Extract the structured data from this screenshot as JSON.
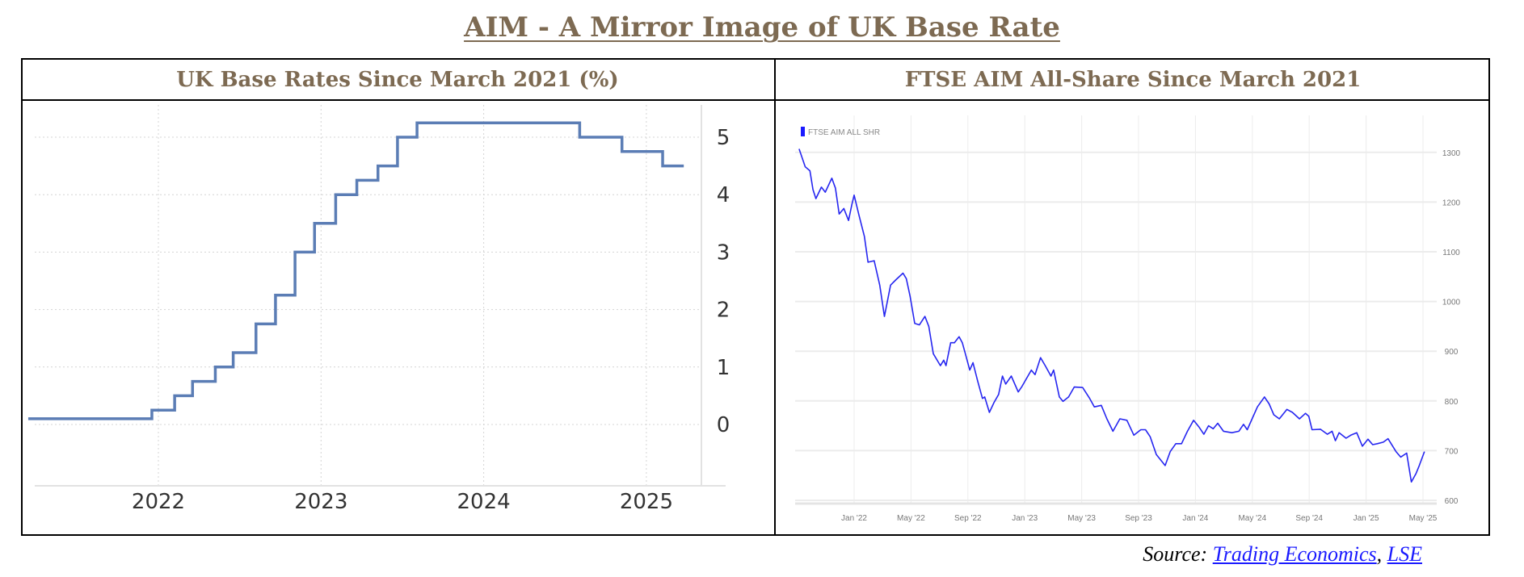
{
  "title": "AIM  - A Mirror Image of UK Base Rate",
  "source": {
    "prefix": "Source: ",
    "link1": "Trading Economics",
    "sep": ", ",
    "link2": "LSE"
  },
  "chart_data": [
    {
      "type": "line",
      "title": "UK Base Rates Since March 2021 (%)",
      "xlabel": "",
      "ylabel": "",
      "x_unit": "decimal year",
      "xlim": [
        2021.2,
        2025.55
      ],
      "ylim": [
        -1.1,
        5.6
      ],
      "yticks": [
        0,
        1,
        2,
        3,
        4,
        5
      ],
      "xticks": [
        {
          "v": 2022,
          "label": "2022"
        },
        {
          "v": 2023,
          "label": "2023"
        },
        {
          "v": 2024,
          "label": "2024"
        },
        {
          "v": 2025,
          "label": "2025"
        }
      ],
      "grid": true,
      "color": "#5b7db5",
      "step_points": [
        [
          2021.2,
          0.1
        ],
        [
          2021.96,
          0.25
        ],
        [
          2022.1,
          0.5
        ],
        [
          2022.21,
          0.75
        ],
        [
          2022.35,
          1.0
        ],
        [
          2022.46,
          1.25
        ],
        [
          2022.6,
          1.75
        ],
        [
          2022.72,
          2.25
        ],
        [
          2022.84,
          3.0
        ],
        [
          2022.96,
          3.5
        ],
        [
          2023.09,
          4.0
        ],
        [
          2023.22,
          4.25
        ],
        [
          2023.35,
          4.5
        ],
        [
          2023.47,
          5.0
        ],
        [
          2023.59,
          5.25
        ],
        [
          2024.59,
          5.0
        ],
        [
          2024.85,
          4.75
        ],
        [
          2025.1,
          4.5
        ],
        [
          2025.23,
          4.5
        ]
      ]
    },
    {
      "type": "line",
      "title": "FTSE AIM All-Share Since March 2021",
      "legend": "FTSE AIM ALL SHR",
      "legend_position": "top-left",
      "x_unit": "months since Jan 2022",
      "xlim": [
        -3.9,
        40.1
      ],
      "ylim": [
        600,
        1340
      ],
      "yticks": [
        600,
        700,
        800,
        900,
        1000,
        1100,
        1200,
        1300
      ],
      "xticks": [
        {
          "v": 0,
          "label": "Jan '22"
        },
        {
          "v": 4,
          "label": "May '22"
        },
        {
          "v": 8,
          "label": "Sep '22"
        },
        {
          "v": 12,
          "label": "Jan '23"
        },
        {
          "v": 16,
          "label": "May '23"
        },
        {
          "v": 20,
          "label": "Sep '23"
        },
        {
          "v": 24,
          "label": "Jan '24"
        },
        {
          "v": 28,
          "label": "May '24"
        },
        {
          "v": 32,
          "label": "Sep '24"
        },
        {
          "v": 36,
          "label": "Jan '25"
        },
        {
          "v": 40,
          "label": "May '25"
        }
      ],
      "grid": true,
      "color": "#2626f0",
      "points": [
        [
          -3.87,
          1307
        ],
        [
          -3.44,
          1271
        ],
        [
          -3.11,
          1263
        ],
        [
          -2.89,
          1225
        ],
        [
          -2.69,
          1207
        ],
        [
          -2.3,
          1230
        ],
        [
          -2.03,
          1220
        ],
        [
          -1.57,
          1248
        ],
        [
          -1.31,
          1228
        ],
        [
          -1.05,
          1176
        ],
        [
          -0.72,
          1187
        ],
        [
          -0.39,
          1163
        ],
        [
          -0.16,
          1195
        ],
        [
          0,
          1214
        ],
        [
          0.33,
          1175
        ],
        [
          0.72,
          1131
        ],
        [
          0.98,
          1079
        ],
        [
          1.41,
          1082
        ],
        [
          1.8,
          1033
        ],
        [
          2.13,
          970
        ],
        [
          2.56,
          1033
        ],
        [
          2.95,
          1044
        ],
        [
          3.44,
          1057
        ],
        [
          3.67,
          1046
        ],
        [
          3.93,
          1011
        ],
        [
          4.26,
          956
        ],
        [
          4.59,
          953
        ],
        [
          4.98,
          970
        ],
        [
          5.25,
          950
        ],
        [
          5.57,
          895
        ],
        [
          6.07,
          871
        ],
        [
          6.3,
          882
        ],
        [
          6.46,
          871
        ],
        [
          6.79,
          917
        ],
        [
          7.05,
          917
        ],
        [
          7.38,
          929
        ],
        [
          7.61,
          917
        ],
        [
          7.87,
          890
        ],
        [
          8.13,
          862
        ],
        [
          8.36,
          877
        ],
        [
          8.69,
          840
        ],
        [
          9.02,
          805
        ],
        [
          9.18,
          808
        ],
        [
          9.51,
          777
        ],
        [
          9.84,
          797
        ],
        [
          10.16,
          813
        ],
        [
          10.43,
          850
        ],
        [
          10.66,
          834
        ],
        [
          11.05,
          850
        ],
        [
          11.54,
          818
        ],
        [
          11.8,
          829
        ],
        [
          12.46,
          862
        ],
        [
          12.72,
          853
        ],
        [
          13.11,
          887
        ],
        [
          13.44,
          871
        ],
        [
          13.84,
          850
        ],
        [
          14.03,
          862
        ],
        [
          14.43,
          808
        ],
        [
          14.69,
          799
        ],
        [
          15.08,
          808
        ],
        [
          15.48,
          828
        ],
        [
          16.07,
          827
        ],
        [
          16.56,
          805
        ],
        [
          16.89,
          788
        ],
        [
          17.38,
          791
        ],
        [
          17.77,
          764
        ],
        [
          18.2,
          739
        ],
        [
          18.69,
          764
        ],
        [
          19.18,
          761
        ],
        [
          19.67,
          731
        ],
        [
          20.16,
          742
        ],
        [
          20.49,
          742
        ],
        [
          20.82,
          728
        ],
        [
          21.25,
          692
        ],
        [
          21.87,
          670
        ],
        [
          22.23,
          698
        ],
        [
          22.62,
          714
        ],
        [
          23.02,
          714
        ],
        [
          23.44,
          739
        ],
        [
          23.87,
          761
        ],
        [
          24.26,
          747
        ],
        [
          24.59,
          733
        ],
        [
          24.92,
          750
        ],
        [
          25.25,
          744
        ],
        [
          25.57,
          755
        ],
        [
          25.97,
          739
        ],
        [
          26.56,
          736
        ],
        [
          27.05,
          739
        ],
        [
          27.38,
          753
        ],
        [
          27.64,
          742
        ],
        [
          28.36,
          788
        ],
        [
          28.85,
          808
        ],
        [
          29.18,
          794
        ],
        [
          29.51,
          772
        ],
        [
          29.9,
          764
        ],
        [
          30.43,
          783
        ],
        [
          30.82,
          777
        ],
        [
          31.31,
          764
        ],
        [
          31.74,
          775
        ],
        [
          31.97,
          769
        ],
        [
          32.2,
          742
        ],
        [
          32.79,
          743
        ],
        [
          33.28,
          733
        ],
        [
          33.61,
          739
        ],
        [
          33.84,
          720
        ],
        [
          34.1,
          736
        ],
        [
          34.59,
          725
        ],
        [
          34.92,
          731
        ],
        [
          35.34,
          736
        ],
        [
          35.74,
          709
        ],
        [
          36.13,
          723
        ],
        [
          36.46,
          712
        ],
        [
          36.79,
          714
        ],
        [
          37.21,
          717
        ],
        [
          37.54,
          724
        ],
        [
          38.1,
          698
        ],
        [
          38.43,
          687
        ],
        [
          38.85,
          695
        ],
        [
          39.18,
          637
        ],
        [
          39.51,
          654
        ],
        [
          39.74,
          670
        ],
        [
          40.1,
          698
        ]
      ]
    }
  ]
}
